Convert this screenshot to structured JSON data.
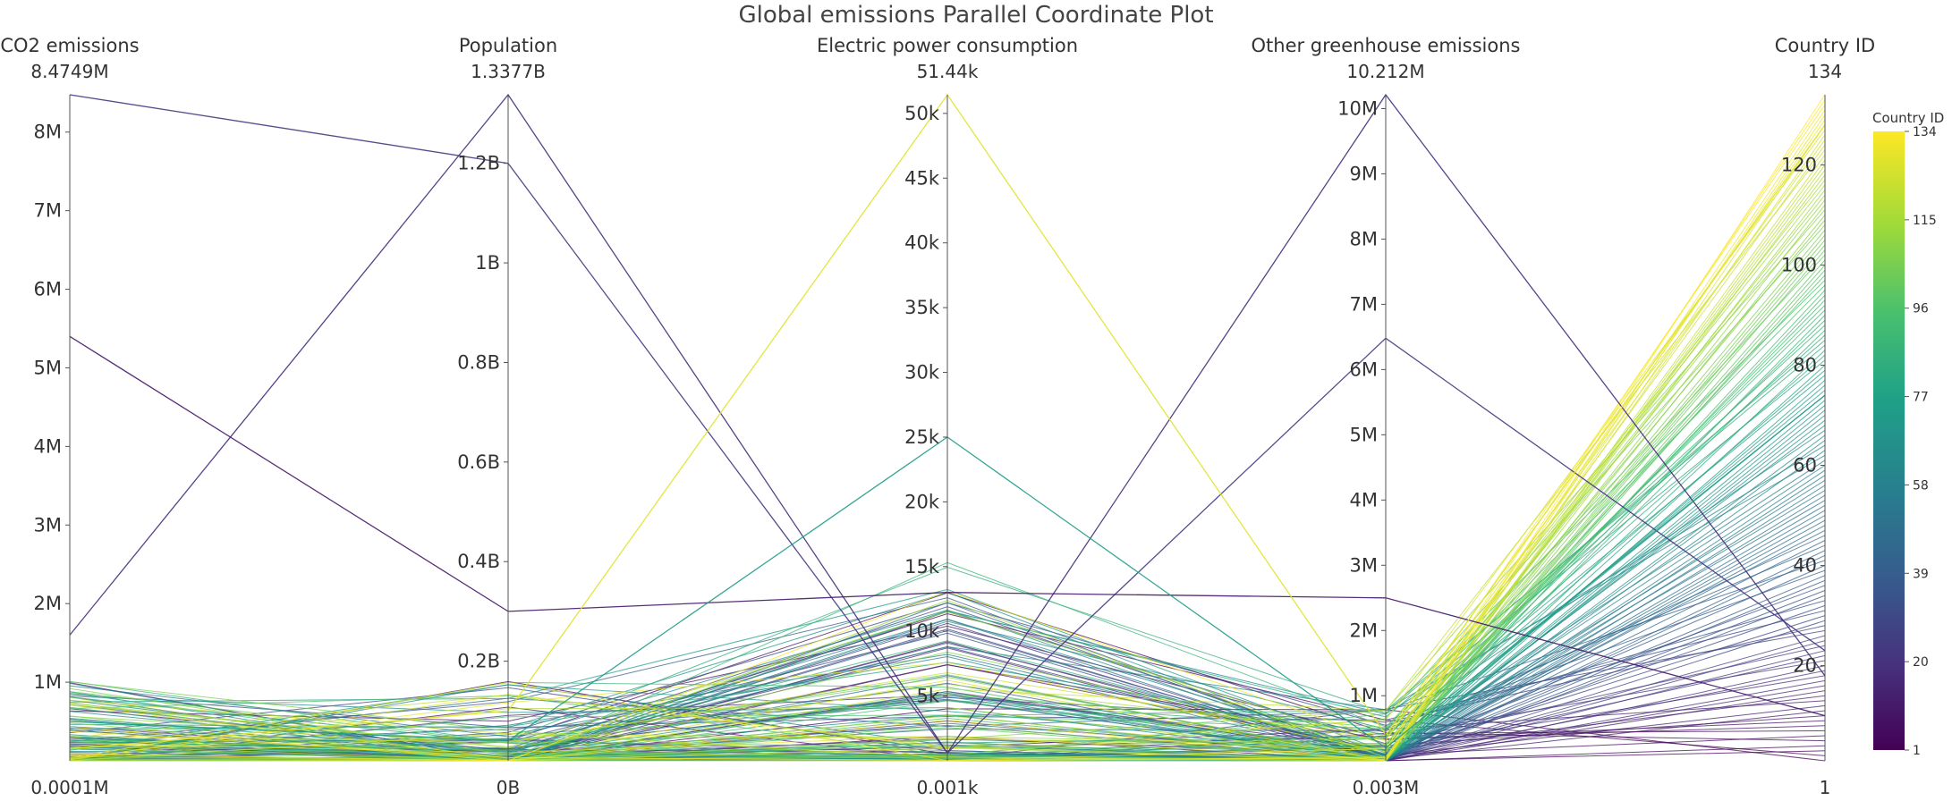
{
  "chart_data": {
    "type": "parallel_coordinates",
    "title": "Global emissions Parallel Coordinate Plot",
    "axes": [
      {
        "label": "CO2 emissions",
        "range_max_label": "8.4749M",
        "range_min_label": "0.0001M",
        "min": 100,
        "max": 8474900,
        "ticks": [
          {
            "v": 1000000,
            "t": "1M"
          },
          {
            "v": 2000000,
            "t": "2M"
          },
          {
            "v": 3000000,
            "t": "3M"
          },
          {
            "v": 4000000,
            "t": "4M"
          },
          {
            "v": 5000000,
            "t": "5M"
          },
          {
            "v": 6000000,
            "t": "6M"
          },
          {
            "v": 7000000,
            "t": "7M"
          },
          {
            "v": 8000000,
            "t": "8M"
          }
        ]
      },
      {
        "label": "Population",
        "range_max_label": "1.3377B",
        "range_min_label": "0B",
        "min": 0,
        "max": 1337700000,
        "ticks": [
          {
            "v": 200000000,
            "t": "0.2B"
          },
          {
            "v": 400000000,
            "t": "0.4B"
          },
          {
            "v": 600000000,
            "t": "0.6B"
          },
          {
            "v": 800000000,
            "t": "0.8B"
          },
          {
            "v": 1000000000,
            "t": "1B"
          },
          {
            "v": 1200000000,
            "t": "1.2B"
          }
        ]
      },
      {
        "label": "Electric power consumption",
        "range_max_label": "51.44k",
        "range_min_label": "0.001k",
        "min": 1,
        "max": 51440,
        "ticks": [
          {
            "v": 5000,
            "t": "5k"
          },
          {
            "v": 10000,
            "t": "10k"
          },
          {
            "v": 15000,
            "t": "15k"
          },
          {
            "v": 20000,
            "t": "20k"
          },
          {
            "v": 25000,
            "t": "25k"
          },
          {
            "v": 30000,
            "t": "30k"
          },
          {
            "v": 35000,
            "t": "35k"
          },
          {
            "v": 40000,
            "t": "40k"
          },
          {
            "v": 45000,
            "t": "45k"
          },
          {
            "v": 50000,
            "t": "50k"
          }
        ]
      },
      {
        "label": "Other greenhouse emissions",
        "range_max_label": "10.212M",
        "range_min_label": "0.003M",
        "min": 3000,
        "max": 10212000,
        "ticks": [
          {
            "v": 1000000,
            "t": "1M"
          },
          {
            "v": 2000000,
            "t": "2M"
          },
          {
            "v": 3000000,
            "t": "3M"
          },
          {
            "v": 4000000,
            "t": "4M"
          },
          {
            "v": 5000000,
            "t": "5M"
          },
          {
            "v": 6000000,
            "t": "6M"
          },
          {
            "v": 7000000,
            "t": "7M"
          },
          {
            "v": 8000000,
            "t": "8M"
          },
          {
            "v": 9000000,
            "t": "9M"
          },
          {
            "v": 10000000,
            "t": "10M"
          }
        ]
      },
      {
        "label": "Country ID",
        "range_max_label": "134",
        "range_min_label": "1",
        "min": 1,
        "max": 134,
        "ticks": [
          {
            "v": 20,
            "t": "20"
          },
          {
            "v": 40,
            "t": "40"
          },
          {
            "v": 60,
            "t": "60"
          },
          {
            "v": 80,
            "t": "80"
          },
          {
            "v": 100,
            "t": "100"
          },
          {
            "v": 120,
            "t": "120"
          }
        ]
      }
    ],
    "highlighted_records": [
      {
        "id": 18,
        "values": [
          1600000,
          1337700000,
          600,
          10212000,
          18
        ]
      },
      {
        "id": 23,
        "values": [
          8474900,
          1200000000,
          600,
          6480000,
          23
        ]
      },
      {
        "id": 10,
        "values": [
          5400000,
          300000000,
          13000,
          2500000,
          10
        ]
      },
      {
        "id": 128,
        "values": [
          150000,
          100000000,
          51440,
          400000,
          128
        ]
      },
      {
        "id": 74,
        "values": [
          500000,
          40000000,
          25000,
          200000,
          74
        ]
      }
    ],
    "colorscale": "viridis",
    "colorbar": {
      "title": "Country ID",
      "min": 1,
      "max": 134,
      "ticks": [
        "1",
        "20",
        "39",
        "58",
        "77",
        "96",
        "115",
        "134"
      ]
    }
  }
}
